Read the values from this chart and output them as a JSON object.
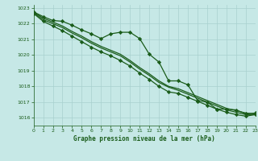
{
  "background_color": "#c6e8e6",
  "grid_color": "#a8d0ce",
  "line_color": "#1a5c1a",
  "title": "Graphe pression niveau de la mer (hPa)",
  "xlim": [
    0,
    23
  ],
  "ylim": [
    1015.5,
    1023.2
  ],
  "yticks": [
    1016,
    1017,
    1018,
    1019,
    1020,
    1021,
    1022,
    1023
  ],
  "xticks": [
    0,
    1,
    2,
    3,
    4,
    5,
    6,
    7,
    8,
    9,
    10,
    11,
    12,
    13,
    14,
    15,
    16,
    17,
    18,
    19,
    20,
    21,
    22,
    23
  ],
  "series": [
    {
      "x": [
        0,
        1,
        2,
        3,
        4,
        5,
        6,
        7,
        8,
        9,
        10,
        11,
        12,
        13,
        14,
        15,
        16,
        17,
        18,
        19,
        20,
        21,
        22,
        23
      ],
      "y": [
        1022.75,
        1022.45,
        1022.2,
        1022.15,
        1021.9,
        1021.6,
        1021.35,
        1021.05,
        1021.35,
        1021.45,
        1021.45,
        1021.05,
        1020.05,
        1019.55,
        1018.35,
        1018.35,
        1018.1,
        1017.1,
        1017.0,
        1016.55,
        1016.55,
        1016.5,
        1016.25,
        1016.3
      ],
      "marker": true,
      "linewidth": 0.9
    },
    {
      "x": [
        0,
        1,
        2,
        3,
        4,
        5,
        6,
        7,
        8,
        9,
        10,
        11,
        12,
        13,
        14,
        15,
        16,
        17,
        18,
        19,
        20,
        21,
        22,
        23
      ],
      "y": [
        1022.75,
        1022.35,
        1022.1,
        1021.85,
        1021.5,
        1021.2,
        1020.85,
        1020.55,
        1020.3,
        1020.05,
        1019.65,
        1019.2,
        1018.8,
        1018.35,
        1018.0,
        1017.85,
        1017.6,
        1017.35,
        1017.1,
        1016.85,
        1016.6,
        1016.45,
        1016.3,
        1016.25
      ],
      "marker": false,
      "linewidth": 0.9
    },
    {
      "x": [
        0,
        1,
        2,
        3,
        4,
        5,
        6,
        7,
        8,
        9,
        10,
        11,
        12,
        13,
        14,
        15,
        16,
        17,
        18,
        19,
        20,
        21,
        22,
        23
      ],
      "y": [
        1022.7,
        1022.25,
        1022.0,
        1021.75,
        1021.4,
        1021.1,
        1020.75,
        1020.45,
        1020.2,
        1019.95,
        1019.55,
        1019.1,
        1018.7,
        1018.25,
        1017.95,
        1017.75,
        1017.5,
        1017.25,
        1017.0,
        1016.75,
        1016.5,
        1016.35,
        1016.2,
        1016.2
      ],
      "marker": false,
      "linewidth": 0.9
    },
    {
      "x": [
        0,
        1,
        2,
        3,
        4,
        5,
        6,
        7,
        8,
        9,
        10,
        11,
        12,
        13,
        14,
        15,
        16,
        17,
        18,
        19,
        20,
        21,
        22,
        23
      ],
      "y": [
        1022.65,
        1022.15,
        1021.85,
        1021.55,
        1021.2,
        1020.85,
        1020.5,
        1020.2,
        1019.95,
        1019.65,
        1019.3,
        1018.85,
        1018.45,
        1018.0,
        1017.65,
        1017.55,
        1017.3,
        1017.05,
        1016.8,
        1016.55,
        1016.35,
        1016.2,
        1016.1,
        1016.2
      ],
      "marker": true,
      "linewidth": 0.9
    }
  ]
}
